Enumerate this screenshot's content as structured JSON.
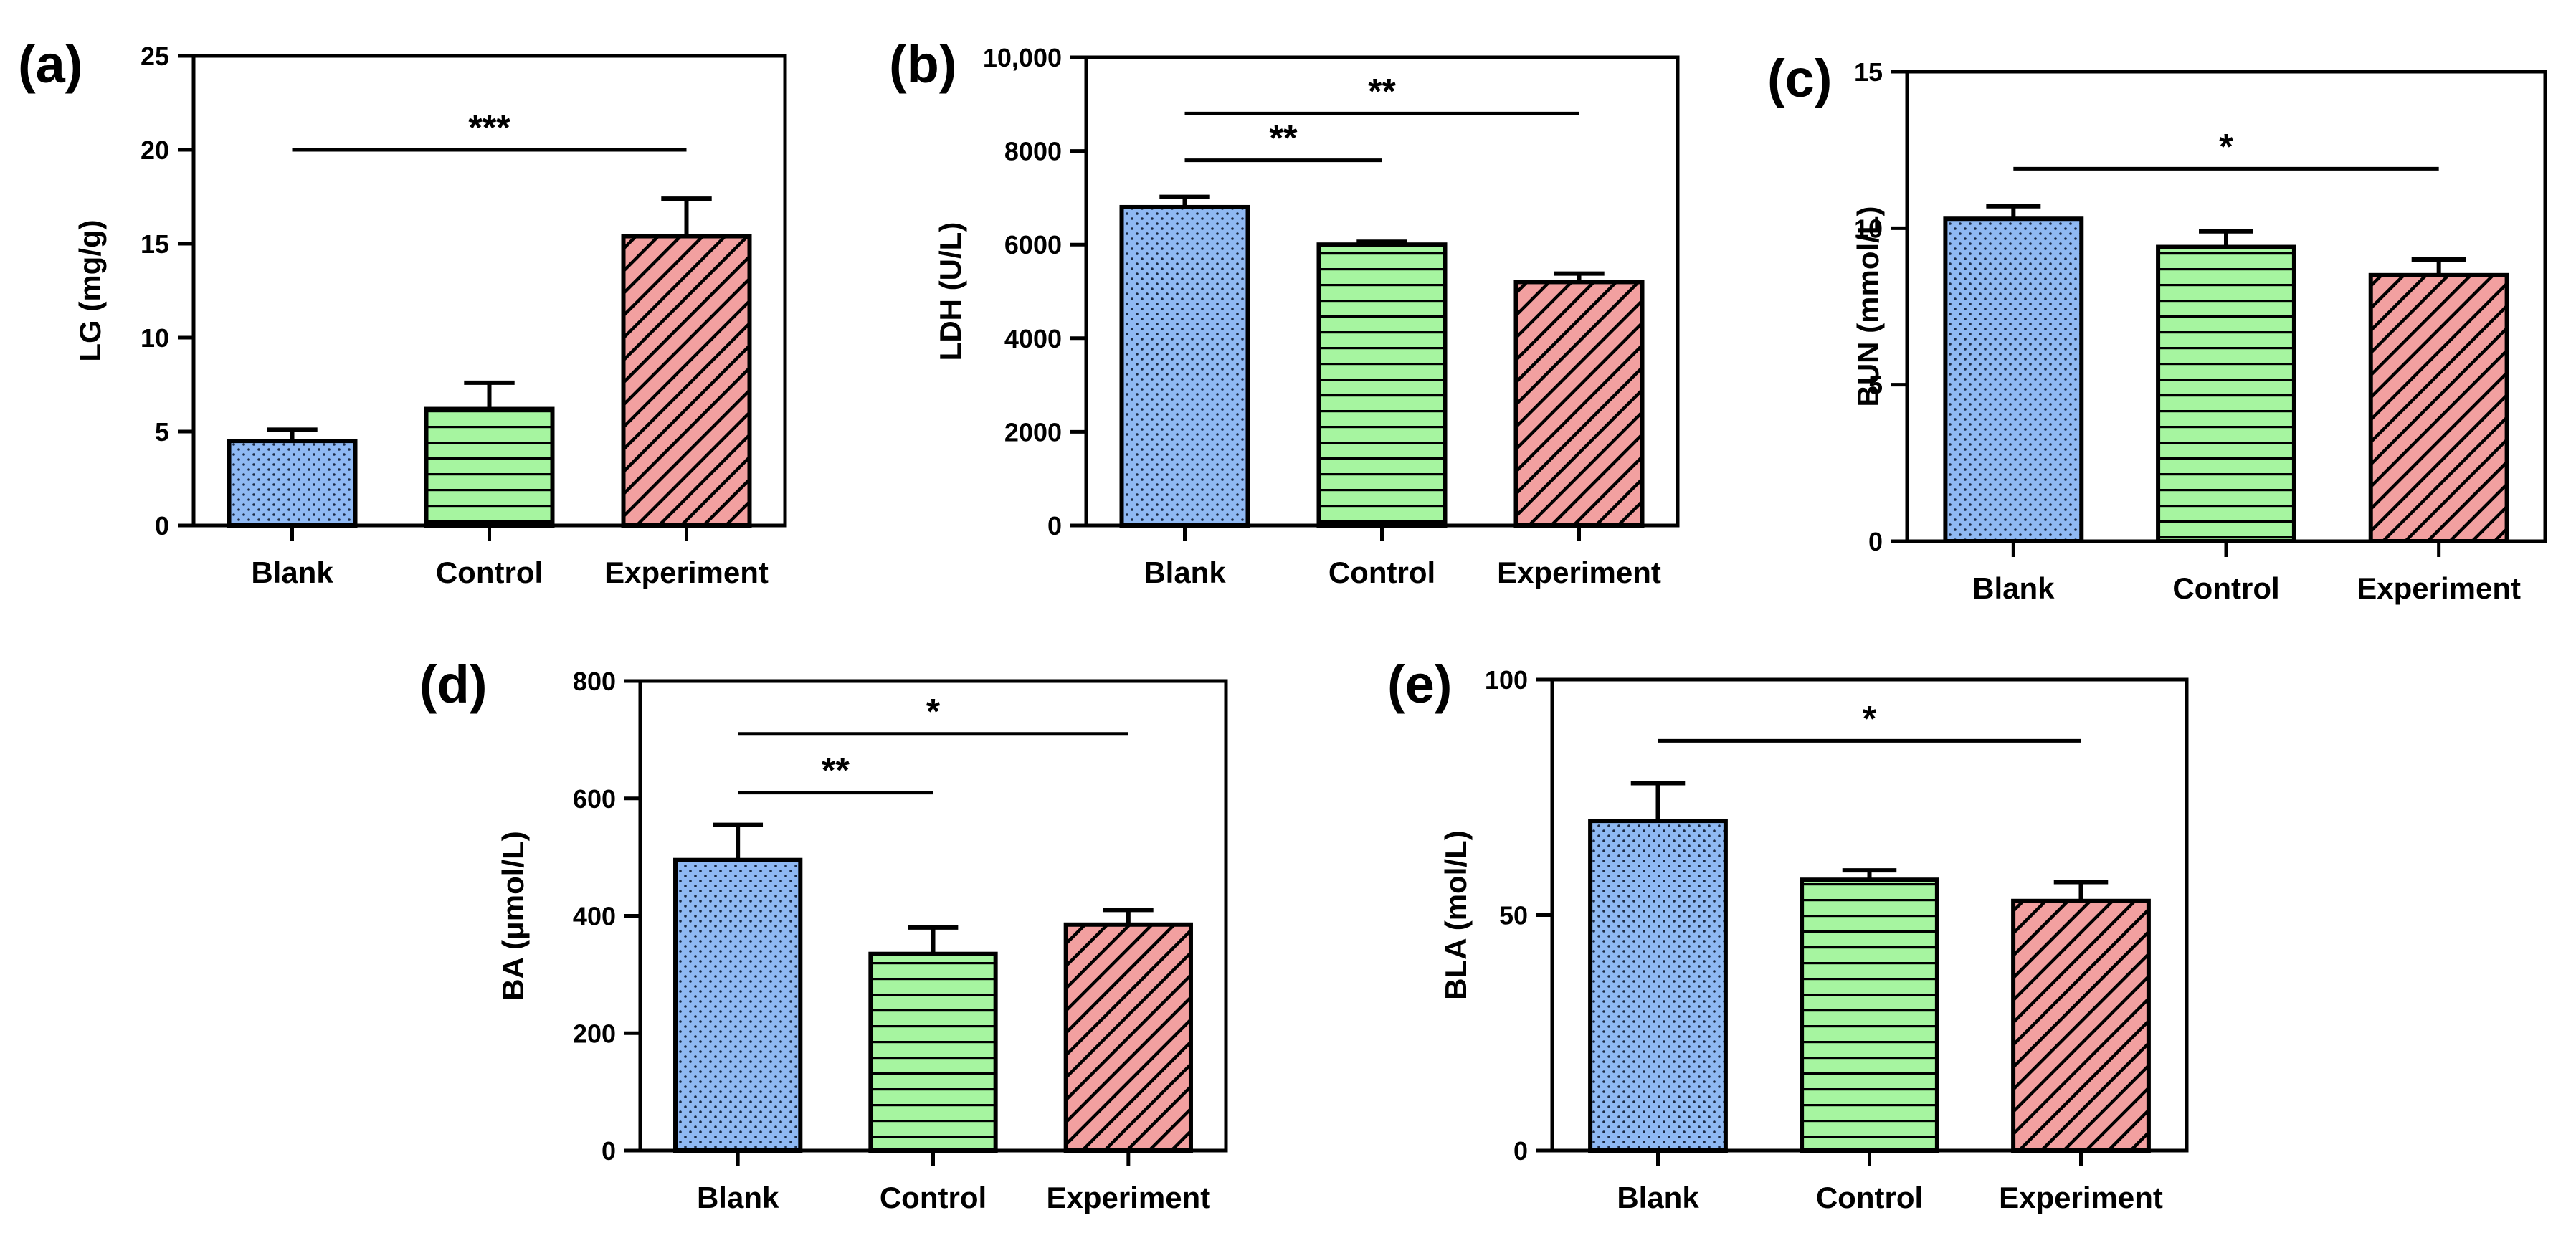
{
  "figure": {
    "colors": {
      "Blank": "#8fb9f3",
      "Control": "#a6f5a0",
      "Experiment": "#f2a0a0",
      "ink": "#000000"
    },
    "patterns": {
      "Blank": "dots",
      "Control": "horizontal-lines",
      "Experiment": "diagonal-hatch"
    }
  },
  "chart_data": [
    {
      "type": "bar",
      "panel": "(a)",
      "ylabel": "LG (mg/g)",
      "categories": [
        "Blank",
        "Control",
        "Experiment"
      ],
      "values": [
        4.5,
        6.2,
        15.4
      ],
      "errors": [
        0.6,
        1.4,
        2.0
      ],
      "ylim": [
        0,
        25
      ],
      "yticks": [
        0,
        5,
        10,
        15,
        20,
        25
      ],
      "ytick_labels": [
        "0",
        "5",
        "10",
        "15",
        "20",
        "25"
      ],
      "significance": [
        {
          "from": 0,
          "to": 2,
          "level": 20,
          "label": "***"
        }
      ]
    },
    {
      "type": "bar",
      "panel": "(b)",
      "ylabel": "LDH (U/L)",
      "categories": [
        "Blank",
        "Control",
        "Experiment"
      ],
      "values": [
        6800,
        6000,
        5200
      ],
      "errors": [
        220,
        60,
        180
      ],
      "ylim": [
        0,
        10000
      ],
      "yticks": [
        0,
        2000,
        4000,
        6000,
        8000,
        10000
      ],
      "ytick_labels": [
        "0",
        "2000",
        "4000",
        "6000",
        "8000",
        "10,000"
      ],
      "significance": [
        {
          "from": 0,
          "to": 1,
          "level": 7800,
          "label": "**"
        },
        {
          "from": 0,
          "to": 2,
          "level": 8800,
          "label": "**"
        }
      ]
    },
    {
      "type": "bar",
      "panel": "(c)",
      "ylabel": "BUN (mmol/L)",
      "categories": [
        "Blank",
        "Control",
        "Experiment"
      ],
      "values": [
        10.3,
        9.4,
        8.5
      ],
      "errors": [
        0.4,
        0.5,
        0.5
      ],
      "ylim": [
        0,
        15
      ],
      "yticks": [
        0,
        5,
        10,
        15
      ],
      "ytick_labels": [
        "0",
        "5",
        "10",
        "15"
      ],
      "significance": [
        {
          "from": 0,
          "to": 2,
          "level": 11.9,
          "label": "*"
        }
      ]
    },
    {
      "type": "bar",
      "panel": "(d)",
      "ylabel": "BA (μmol/L)",
      "categories": [
        "Blank",
        "Control",
        "Experiment"
      ],
      "values": [
        495,
        335,
        385
      ],
      "errors": [
        60,
        45,
        25
      ],
      "ylim": [
        0,
        800
      ],
      "yticks": [
        0,
        200,
        400,
        600,
        800
      ],
      "ytick_labels": [
        "0",
        "200",
        "400",
        "600",
        "800"
      ],
      "significance": [
        {
          "from": 0,
          "to": 1,
          "level": 610,
          "label": "**"
        },
        {
          "from": 0,
          "to": 2,
          "level": 710,
          "label": "*"
        }
      ]
    },
    {
      "type": "bar",
      "panel": "(e)",
      "ylabel": "BLA (mol/L)",
      "categories": [
        "Blank",
        "Control",
        "Experiment"
      ],
      "values": [
        70,
        57.5,
        53
      ],
      "errors": [
        8,
        2,
        4
      ],
      "ylim": [
        0,
        100
      ],
      "yticks": [
        0,
        50,
        100
      ],
      "ytick_labels": [
        "0",
        "50",
        "100"
      ],
      "significance": [
        {
          "from": 0,
          "to": 2,
          "level": 87,
          "label": "*"
        }
      ]
    }
  ]
}
